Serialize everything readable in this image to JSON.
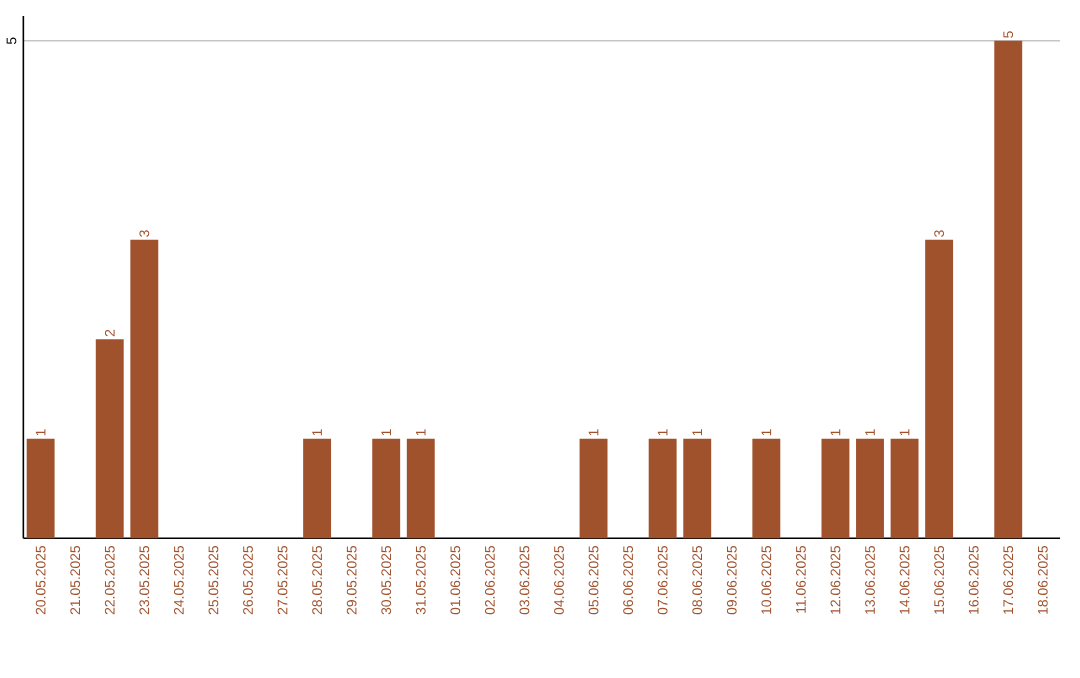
{
  "chart_data": {
    "type": "bar",
    "categories": [
      "20.05.2025",
      "21.05.2025",
      "22.05.2025",
      "23.05.2025",
      "24.05.2025",
      "25.05.2025",
      "26.05.2025",
      "27.05.2025",
      "28.05.2025",
      "29.05.2025",
      "30.05.2025",
      "31.05.2025",
      "01.06.2025",
      "02.06.2025",
      "03.06.2025",
      "04.06.2025",
      "05.06.2025",
      "06.06.2025",
      "07.06.2025",
      "08.06.2025",
      "09.06.2025",
      "10.06.2025",
      "11.06.2025",
      "12.06.2025",
      "13.06.2025",
      "14.06.2025",
      "15.06.2025",
      "16.06.2025",
      "17.06.2025",
      "18.06.2025"
    ],
    "values": [
      1,
      null,
      2,
      3,
      null,
      null,
      null,
      null,
      1,
      null,
      1,
      1,
      null,
      null,
      null,
      null,
      1,
      null,
      1,
      1,
      null,
      1,
      null,
      1,
      1,
      1,
      3,
      null,
      5,
      null
    ],
    "color": "#a0522d",
    "ylim": [
      0,
      5.25
    ],
    "yticks": [
      5
    ],
    "grid": "y",
    "data_labels": true
  }
}
